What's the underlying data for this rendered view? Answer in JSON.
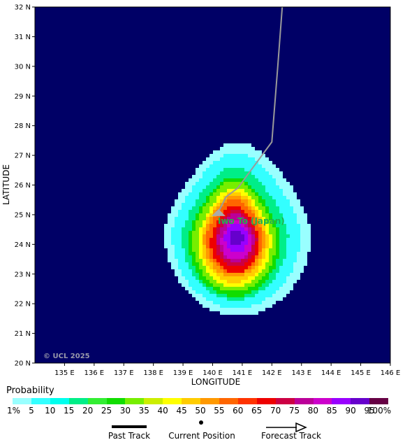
{
  "map": {
    "lat_ticks": [
      "20 N",
      "21 N",
      "22 N",
      "23 N",
      "24 N",
      "25 N",
      "26 N",
      "27 N",
      "28 N",
      "29 N",
      "30 N",
      "31 N",
      "32 N"
    ],
    "lon_ticks": [
      "135 E",
      "136 E",
      "137 E",
      "138 E",
      "139 E",
      "140 E",
      "141 E",
      "142 E",
      "143 E",
      "144 E",
      "145 E",
      "146 E"
    ],
    "lat_range": [
      20,
      32
    ],
    "lon_range": [
      134,
      146
    ],
    "y_axis_title": "LATITUDE",
    "x_axis_title": "LONGITUDE",
    "background_color": "#000066",
    "place_label": "Iwo To (Japan)",
    "place_label_color": "#22b14c",
    "copyright": "© UCL 2025",
    "track_color": "#9a9a9a",
    "track_points": [
      {
        "lon": 142.35,
        "lat": 32.0
      },
      {
        "lon": 142.2,
        "lat": 30.0
      },
      {
        "lon": 142.0,
        "lat": 27.45
      },
      {
        "lon": 140.85,
        "lat": 25.9
      },
      {
        "lon": 140.45,
        "lat": 25.6
      },
      {
        "lon": 140.15,
        "lat": 25.0
      }
    ],
    "current_position": {
      "lon": 140.2,
      "lat": 25.0
    }
  },
  "legend": {
    "title": "Probability",
    "labels": [
      "1%",
      "5",
      "10",
      "15",
      "20",
      "25",
      "30",
      "35",
      "40",
      "45",
      "50",
      "55",
      "60",
      "65",
      "70",
      "75",
      "80",
      "85",
      "90",
      "95",
      "100%"
    ],
    "colors": [
      "#99ffff",
      "#33ffff",
      "#00ffee",
      "#00ee88",
      "#33ee33",
      "#11dd00",
      "#77ee00",
      "#ccee00",
      "#ffff00",
      "#ffcc00",
      "#ff9900",
      "#ff6600",
      "#ff3300",
      "#ee0000",
      "#cc0044",
      "#bb0099",
      "#cc00cc",
      "#9900ff",
      "#6600cc",
      "#550099",
      "#660044"
    ]
  },
  "key": {
    "past_track": "Past Track",
    "current_position": "Current Position",
    "forecast_track": "Forecast Track"
  }
}
